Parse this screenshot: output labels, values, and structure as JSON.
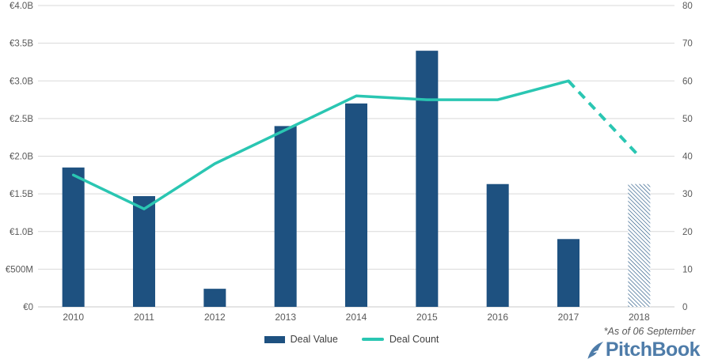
{
  "chart_data": {
    "type": "bar",
    "subtype": "combo-bar-line-dual-axis",
    "categories": [
      "2010",
      "2011",
      "2012",
      "2013",
      "2014",
      "2015",
      "2016",
      "2017",
      "2018"
    ],
    "series": [
      {
        "name": "Deal Value",
        "type": "bar",
        "axis": "left",
        "unit": "EUR billions",
        "values": [
          1.85,
          1.47,
          0.24,
          2.4,
          2.7,
          3.4,
          1.63,
          0.9,
          1.63
        ],
        "last_point_estimated_hatched": true
      },
      {
        "name": "Deal Count",
        "type": "line",
        "axis": "right",
        "values": [
          35,
          26,
          38,
          47,
          56,
          55,
          55,
          60,
          40
        ],
        "last_segment_dashed": true
      }
    ],
    "left_axis": {
      "min": 0,
      "max": 4.0,
      "tick_labels": [
        "€0",
        "€500M",
        "€1.0B",
        "€1.5B",
        "€2.0B",
        "€2.5B",
        "€3.0B",
        "€3.5B",
        "€4.0B"
      ]
    },
    "right_axis": {
      "min": 0,
      "max": 80,
      "tick_labels": [
        "0",
        "10",
        "20",
        "30",
        "40",
        "50",
        "60",
        "70",
        "80"
      ]
    },
    "grid": "horizontal",
    "legend_position": "bottom-center",
    "annotation": "*As of 06 September"
  },
  "legend": {
    "deal_value_label": "Deal Value",
    "deal_count_label": "Deal Count"
  },
  "footnote": "*As of 06 September",
  "logo_text": "PitchBook",
  "colors": {
    "bar_blue": "#1E5180",
    "line_teal": "#2AC6B2",
    "gridline": "#D9D9D9",
    "axis_line": "#C9C9C9",
    "axis_text": "#595959",
    "logo_blue": "#4E7CA9"
  }
}
